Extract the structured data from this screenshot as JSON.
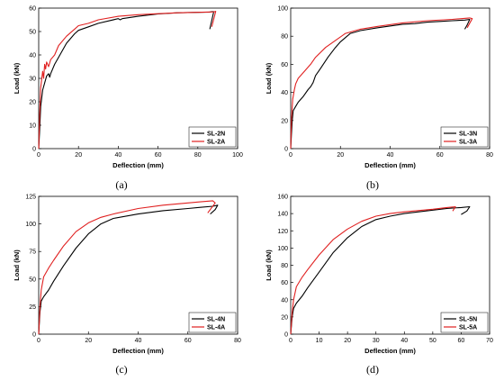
{
  "colors": {
    "N": "#000000",
    "A": "#e02020"
  },
  "chart_data": [
    {
      "type": "line",
      "caption": "(a)",
      "xlabel": "Deflection (mm)",
      "ylabel": "Load (kN)",
      "xlim": [
        0,
        100
      ],
      "ylim": [
        0,
        60
      ],
      "xticks": [
        "0",
        "20",
        "40",
        "60",
        "80",
        "100"
      ],
      "yticks": [
        "0",
        "10",
        "20",
        "30",
        "40",
        "50",
        "60"
      ],
      "legend": "bottom-right",
      "series": [
        {
          "name": "SL-2N",
          "color": "N",
          "points": [
            [
              0,
              0
            ],
            [
              0.5,
              8
            ],
            [
              1,
              18
            ],
            [
              2,
              25
            ],
            [
              3,
              28
            ],
            [
              4,
              31
            ],
            [
              5,
              32
            ],
            [
              5.5,
              30.5
            ],
            [
              6,
              32
            ],
            [
              8,
              36
            ],
            [
              10,
              39
            ],
            [
              14,
              45
            ],
            [
              18,
              49
            ],
            [
              20,
              50.5
            ],
            [
              25,
              52
            ],
            [
              30,
              53.5
            ],
            [
              40,
              55.5
            ],
            [
              41,
              55
            ],
            [
              42,
              55.5
            ],
            [
              50,
              56.5
            ],
            [
              60,
              57.5
            ],
            [
              70,
              58
            ],
            [
              80,
              58.2
            ],
            [
              86,
              58.3
            ],
            [
              87,
              58.5
            ],
            [
              88,
              58.5
            ],
            [
              86,
              51
            ]
          ]
        },
        {
          "name": "SL-2A",
          "color": "A",
          "points": [
            [
              0,
              0
            ],
            [
              0.5,
              15
            ],
            [
              1,
              26
            ],
            [
              2,
              33
            ],
            [
              2.5,
              30
            ],
            [
              3,
              36
            ],
            [
              3.5,
              34
            ],
            [
              4,
              37
            ],
            [
              5,
              35
            ],
            [
              6,
              38
            ],
            [
              8,
              40
            ],
            [
              10,
              44
            ],
            [
              14,
              48
            ],
            [
              18,
              51
            ],
            [
              20,
              52.5
            ],
            [
              25,
              53.5
            ],
            [
              30,
              55
            ],
            [
              40,
              56.5
            ],
            [
              50,
              57.2
            ],
            [
              60,
              57.6
            ],
            [
              70,
              58
            ],
            [
              80,
              58.2
            ],
            [
              88,
              58.4
            ],
            [
              89,
              58.6
            ],
            [
              87,
              52
            ]
          ]
        }
      ]
    },
    {
      "type": "line",
      "caption": "(b)",
      "xlabel": "Deflection (mm)",
      "ylabel": "Load (kN)",
      "xlim": [
        0,
        80
      ],
      "ylim": [
        0,
        100
      ],
      "xticks": [
        "0",
        "20",
        "40",
        "60",
        "80"
      ],
      "yticks": [
        "0",
        "20",
        "40",
        "60",
        "80",
        "100"
      ],
      "legend": "bottom-right",
      "series": [
        {
          "name": "SL-3N",
          "color": "N",
          "points": [
            [
              0,
              0
            ],
            [
              0.3,
              10
            ],
            [
              0.6,
              20
            ],
            [
              1,
              27
            ],
            [
              2,
              30
            ],
            [
              3,
              33
            ],
            [
              5,
              37
            ],
            [
              7,
              42
            ],
            [
              8,
              44
            ],
            [
              9,
              47
            ],
            [
              10,
              52
            ],
            [
              12,
              57
            ],
            [
              15,
              65
            ],
            [
              18,
              72
            ],
            [
              20,
              76
            ],
            [
              24,
              82
            ],
            [
              28,
              84
            ],
            [
              35,
              86
            ],
            [
              45,
              88.5
            ],
            [
              50,
              89
            ],
            [
              55,
              90
            ],
            [
              60,
              90.5
            ],
            [
              65,
              91
            ],
            [
              70,
              91.5
            ],
            [
              72,
              92
            ],
            [
              71,
              88
            ],
            [
              70,
              85
            ]
          ]
        },
        {
          "name": "SL-3A",
          "color": "A",
          "points": [
            [
              0,
              0
            ],
            [
              0.3,
              20
            ],
            [
              0.8,
              35
            ],
            [
              1.5,
              42
            ],
            [
              2,
              46
            ],
            [
              3,
              50
            ],
            [
              4,
              52
            ],
            [
              6,
              56
            ],
            [
              8,
              60
            ],
            [
              10,
              65
            ],
            [
              14,
              72
            ],
            [
              18,
              77
            ],
            [
              22,
              82
            ],
            [
              28,
              85
            ],
            [
              35,
              87
            ],
            [
              45,
              89.5
            ],
            [
              55,
              91
            ],
            [
              65,
              92
            ],
            [
              72,
              93
            ],
            [
              73,
              92.5
            ],
            [
              71,
              86
            ]
          ]
        }
      ]
    },
    {
      "type": "line",
      "caption": "(c)",
      "xlabel": "Deflection (mm)",
      "ylabel": "Load (kN)",
      "xlim": [
        0,
        80
      ],
      "ylim": [
        0,
        125
      ],
      "xticks": [
        "0",
        "20",
        "40",
        "60",
        "80"
      ],
      "yticks": [
        "0",
        "25",
        "50",
        "75",
        "100",
        "125"
      ],
      "legend": "bottom-right",
      "series": [
        {
          "name": "SL-4N",
          "color": "N",
          "points": [
            [
              0,
              0
            ],
            [
              0.5,
              20
            ],
            [
              1,
              30
            ],
            [
              2,
              34
            ],
            [
              4,
              40
            ],
            [
              6,
              48
            ],
            [
              10,
              62
            ],
            [
              15,
              78
            ],
            [
              20,
              91
            ],
            [
              25,
              100
            ],
            [
              30,
              105
            ],
            [
              40,
              109
            ],
            [
              50,
              112
            ],
            [
              60,
              114
            ],
            [
              65,
              115
            ],
            [
              70,
              116
            ],
            [
              72,
              117
            ],
            [
              71,
              113
            ],
            [
              69,
              109
            ]
          ]
        },
        {
          "name": "SL-4A",
          "color": "A",
          "points": [
            [
              0,
              0
            ],
            [
              0.5,
              25
            ],
            [
              1,
              40
            ],
            [
              2,
              52
            ],
            [
              4,
              60
            ],
            [
              6,
              67
            ],
            [
              10,
              80
            ],
            [
              15,
              93
            ],
            [
              20,
              101
            ],
            [
              25,
              106
            ],
            [
              30,
              109
            ],
            [
              40,
              114
            ],
            [
              50,
              117
            ],
            [
              60,
              119
            ],
            [
              65,
              120
            ],
            [
              70,
              121
            ],
            [
              71,
              119
            ],
            [
              68,
              110
            ]
          ]
        }
      ]
    },
    {
      "type": "line",
      "caption": "(d)",
      "xlabel": "Deflection (mm)",
      "ylabel": "Load (kN)",
      "xlim": [
        0,
        70
      ],
      "ylim": [
        0,
        160
      ],
      "xticks": [
        "0",
        "10",
        "20",
        "30",
        "40",
        "50",
        "60",
        "70"
      ],
      "yticks": [
        "0",
        "20",
        "40",
        "60",
        "80",
        "100",
        "120",
        "140",
        "160"
      ],
      "legend": "bottom-right",
      "series": [
        {
          "name": "SL-5N",
          "color": "N",
          "points": [
            [
              0,
              0
            ],
            [
              0.5,
              20
            ],
            [
              1,
              30
            ],
            [
              2,
              36
            ],
            [
              4,
              44
            ],
            [
              6,
              54
            ],
            [
              10,
              72
            ],
            [
              15,
              95
            ],
            [
              20,
              112
            ],
            [
              25,
              125
            ],
            [
              30,
              133
            ],
            [
              35,
              137
            ],
            [
              40,
              140
            ],
            [
              50,
              144
            ],
            [
              55,
              146
            ],
            [
              60,
              147
            ],
            [
              63,
              148
            ],
            [
              62,
              143
            ],
            [
              60,
              139
            ]
          ]
        },
        {
          "name": "SL-5A",
          "color": "A",
          "points": [
            [
              0,
              0
            ],
            [
              0.5,
              25
            ],
            [
              1,
              40
            ],
            [
              2,
              55
            ],
            [
              4,
              66
            ],
            [
              6,
              75
            ],
            [
              10,
              92
            ],
            [
              15,
              110
            ],
            [
              20,
              122
            ],
            [
              25,
              131
            ],
            [
              30,
              137
            ],
            [
              35,
              140
            ],
            [
              40,
              142
            ],
            [
              50,
              145
            ],
            [
              55,
              147
            ],
            [
              58,
              148
            ],
            [
              57,
              143
            ]
          ]
        }
      ]
    }
  ]
}
